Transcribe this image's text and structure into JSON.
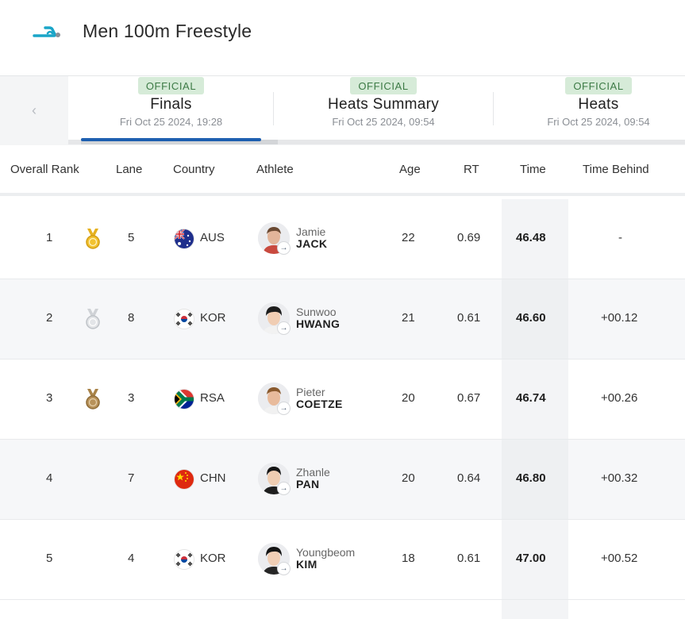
{
  "header": {
    "title": "Men 100m Freestyle",
    "logo_icon": "swimmer-logo-icon"
  },
  "colors": {
    "accent": "#1d5fb0",
    "badge_bg": "#d6ebd8",
    "badge_text": "#3c7a45",
    "logo": "#1aa5c8"
  },
  "tabs": [
    {
      "badge": "OFFICIAL",
      "label": "Finals",
      "date": "Fri Oct 25 2024, 19:28",
      "active": true
    },
    {
      "badge": "OFFICIAL",
      "label": "Heats Summary",
      "date": "Fri Oct 25 2024, 09:54",
      "active": false
    },
    {
      "badge": "OFFICIAL",
      "label": "Heats",
      "date": "Fri Oct 25 2024, 09:54",
      "active": false
    }
  ],
  "table": {
    "headers": {
      "rank": "Overall Rank",
      "lane": "Lane",
      "country": "Country",
      "athlete": "Athlete",
      "age": "Age",
      "rt": "RT",
      "time": "Time",
      "behind": "Time Behind"
    },
    "rows": [
      {
        "rank": "1",
        "medal": "gold",
        "lane": "5",
        "country": "AUS",
        "flag": "aus-flag-icon",
        "first": "Jamie",
        "last": "JACK",
        "age": "22",
        "rt": "0.69",
        "time": "46.48",
        "behind": "-"
      },
      {
        "rank": "2",
        "medal": "silver",
        "lane": "8",
        "country": "KOR",
        "flag": "kor-flag-icon",
        "first": "Sunwoo",
        "last": "HWANG",
        "age": "21",
        "rt": "0.61",
        "time": "46.60",
        "behind": "+00.12"
      },
      {
        "rank": "3",
        "medal": "bronze",
        "lane": "3",
        "country": "RSA",
        "flag": "rsa-flag-icon",
        "first": "Pieter",
        "last": "COETZE",
        "age": "20",
        "rt": "0.67",
        "time": "46.74",
        "behind": "+00.26"
      },
      {
        "rank": "4",
        "medal": "",
        "lane": "7",
        "country": "CHN",
        "flag": "chn-flag-icon",
        "first": "Zhanle",
        "last": "PAN",
        "age": "20",
        "rt": "0.64",
        "time": "46.80",
        "behind": "+00.32"
      },
      {
        "rank": "5",
        "medal": "",
        "lane": "4",
        "country": "KOR",
        "flag": "kor-flag-icon",
        "first": "Youngbeom",
        "last": "KIM",
        "age": "18",
        "rt": "0.61",
        "time": "47.00",
        "behind": "+00.52"
      }
    ]
  }
}
